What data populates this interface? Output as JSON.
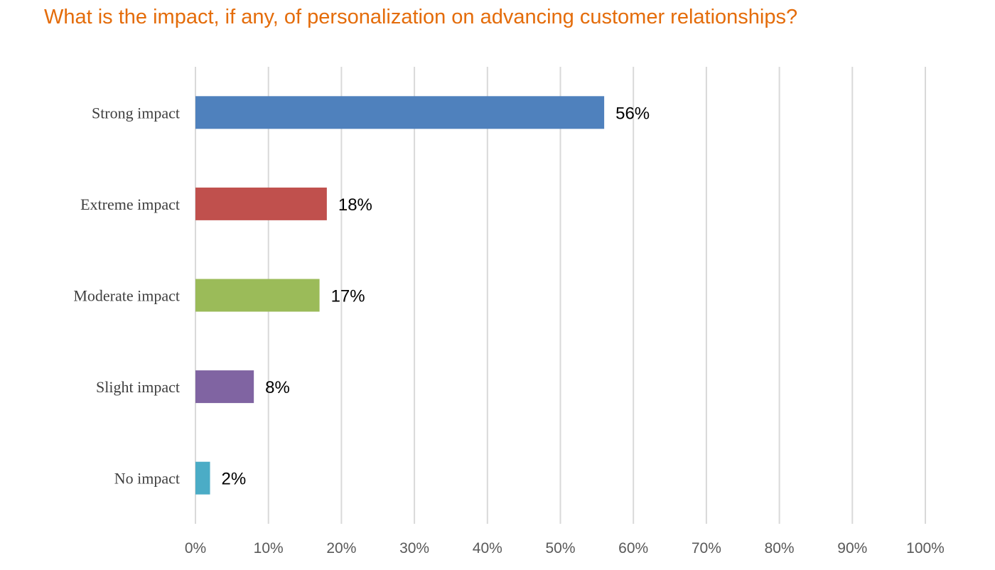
{
  "chart_data": {
    "type": "bar",
    "orientation": "horizontal",
    "title": "What is the impact, if any, of personalization on advancing customer relationships?",
    "categories": [
      "Strong impact",
      "Extreme impact",
      "Moderate impact",
      "Slight impact",
      "No impact"
    ],
    "values": [
      56,
      18,
      17,
      8,
      2
    ],
    "data_labels": [
      "56%",
      "18%",
      "17%",
      "8%",
      "2%"
    ],
    "colors": [
      "#4f81bd",
      "#c0504d",
      "#9bbb59",
      "#8064a2",
      "#4bacc6"
    ],
    "xlim": [
      0,
      100
    ],
    "xticks": [
      "0%",
      "10%",
      "20%",
      "30%",
      "40%",
      "50%",
      "60%",
      "70%",
      "80%",
      "90%",
      "100%"
    ],
    "xlabel": "",
    "ylabel": "",
    "grid": true,
    "legend": "none"
  }
}
